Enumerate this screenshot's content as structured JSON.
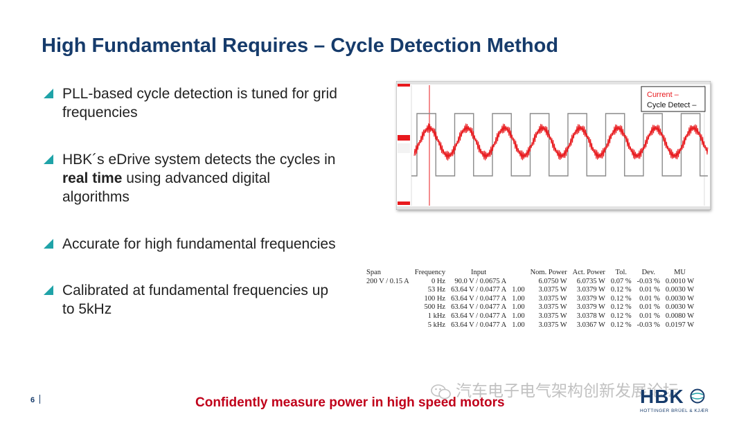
{
  "slide": {
    "title": "High Fundamental Requires – Cycle Detection Method",
    "page_number": "6",
    "footer": "Confidently measure power in high speed motors"
  },
  "bullets": [
    {
      "lines": [
        "PLL-based cycle detection is tuned for grid",
        "frequencies"
      ]
    },
    {
      "line1": "HBK´s eDrive system detects the cycles in",
      "bold": "real time",
      "rest": " using advanced digital",
      "line3": "algorithms"
    },
    {
      "lines": [
        "Accurate for high fundamental frequencies"
      ]
    },
    {
      "lines": [
        "Calibrated at fundamental frequencies up",
        "to 5kHz"
      ]
    }
  ],
  "scope": {
    "legend": [
      "Current –",
      "Cycle Detect –"
    ],
    "colors": {
      "current": "#e8191d",
      "cycle": "#8a8a8a",
      "accent": "#1fa3a8"
    }
  },
  "table": {
    "headers": [
      "Span",
      "Frequency",
      "Input",
      "",
      "Nom. Power",
      "Act. Power",
      "Tol.",
      "Dev.",
      "MU"
    ],
    "rows": [
      [
        "200 V / 0.15 A",
        "0 Hz",
        "90.0 V / 0.0675 A",
        "",
        "6.0750 W",
        "6.0735 W",
        "0.07 %",
        "-0.03 %",
        "0.0010 W"
      ],
      [
        "",
        "53 Hz",
        "63.64 V / 0.0477 A",
        "1.00",
        "3.0375 W",
        "3.0379 W",
        "0.12 %",
        "0.01 %",
        "0.0030 W"
      ],
      [
        "",
        "100 Hz",
        "63.64 V / 0.0477 A",
        "1.00",
        "3.0375 W",
        "3.0379 W",
        "0.12 %",
        "0.01 %",
        "0.0030 W"
      ],
      [
        "",
        "500 Hz",
        "63.64 V / 0.0477 A",
        "1.00",
        "3.0375 W",
        "3.0379 W",
        "0.12 %",
        "0.01 %",
        "0.0030 W"
      ],
      [
        "",
        "1 kHz",
        "63.64 V / 0.0477 A",
        "1.00",
        "3.0375 W",
        "3.0378 W",
        "0.12 %",
        "0.01 %",
        "0.0080 W"
      ],
      [
        "",
        "5 kHz",
        "63.64 V / 0.0477 A",
        "1.00",
        "3.0375 W",
        "3.0367 W",
        "0.12 %",
        "-0.03 %",
        "0.0197 W"
      ]
    ]
  },
  "watermark": "汽车电子电气架构创新发展论坛",
  "logo": {
    "text": "HBK",
    "subtitle": "HOTTINGER BRÜEL & KJÆR"
  }
}
